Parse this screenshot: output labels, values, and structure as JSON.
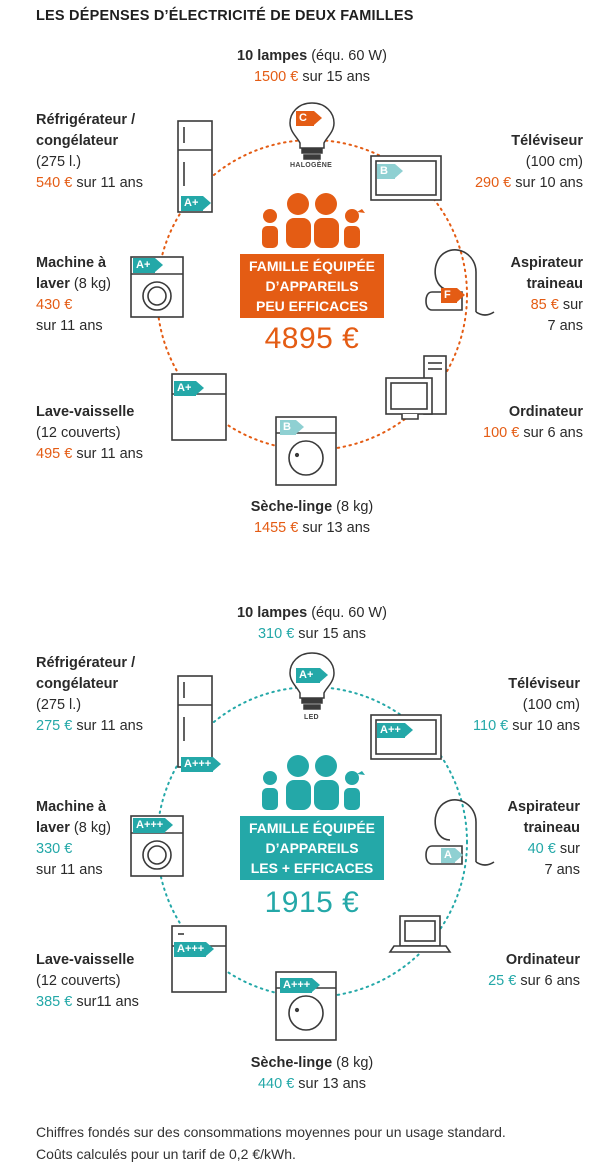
{
  "title": "LES DÉPENSES D’ÉLECTRICITÉ DE DEUX FAMILLES",
  "panels": [
    {
      "box_lines": [
        "FAMILLE ÉQUIPÉE",
        "D’APPAREILS",
        "PEU EFFICACES"
      ],
      "total": "4895 €",
      "bulb_caption": "HALOGÈNE",
      "items": {
        "lampes": {
          "name": "10 lampes",
          "detail": " (équ. 60 W)",
          "cost": "1500 €",
          "period": " sur 15 ans",
          "label": "C"
        },
        "frigo": {
          "name1": "Réfrigérateur /",
          "name2": "congélateur",
          "detail": "(275 l.)",
          "cost": "540 €",
          "period": " sur 11 ans",
          "label": "A+"
        },
        "tv": {
          "name": "Téléviseur",
          "detail": "(100 cm)",
          "cost": "290 €",
          "period": " sur 10 ans",
          "label": "B"
        },
        "machine": {
          "name1": "Machine à",
          "name2": "laver",
          "detail": " (8 kg)",
          "cost": "430 €",
          "period": "sur 11 ans",
          "label": "A+"
        },
        "aspi": {
          "name1": "Aspirateur",
          "name2": "traineau",
          "cost": "85 €",
          "period1": " sur",
          "period2": "7 ans",
          "label": "F"
        },
        "lave": {
          "name": "Lave-vaisselle",
          "detail": "(12 couverts)",
          "cost": "495 €",
          "period": " sur 11 ans",
          "label": "A+"
        },
        "ordi": {
          "name": "Ordinateur",
          "cost": "100 €",
          "period": " sur 6 ans"
        },
        "seche": {
          "name": "Sèche-linge",
          "detail": " (8 kg)",
          "cost": "1455 €",
          "period": " sur 13 ans",
          "label": "B"
        }
      }
    },
    {
      "box_lines": [
        "FAMILLE ÉQUIPÉE",
        "D’APPAREILS",
        "LES + EFFICACES"
      ],
      "total": "1915 €",
      "bulb_caption": "LED",
      "items": {
        "lampes": {
          "name": "10 lampes",
          "detail": " (équ. 60 W)",
          "cost": "310 €",
          "period": " sur 15 ans",
          "label": "A+"
        },
        "frigo": {
          "name1": "Réfrigérateur /",
          "name2": "congélateur",
          "detail": "(275 l.)",
          "cost": "275 €",
          "period": " sur 11 ans",
          "label": "A+++"
        },
        "tv": {
          "name": "Téléviseur",
          "detail": "(100 cm)",
          "cost": "110 €",
          "period": " sur 10 ans",
          "label": "A++"
        },
        "machine": {
          "name1": "Machine à",
          "name2": "laver",
          "detail": " (8 kg)",
          "cost": "330 €",
          "period": "sur 11 ans",
          "label": "A+++"
        },
        "aspi": {
          "name1": "Aspirateur",
          "name2": "traineau",
          "cost": "40 €",
          "period1": " sur",
          "period2": "7 ans",
          "label": "A"
        },
        "lave": {
          "name": "Lave-vaisselle",
          "detail": "(12 couverts)",
          "cost": "385 €",
          "period": " sur11 ans",
          "label": "A+++"
        },
        "ordi": {
          "name": "Ordinateur",
          "cost": "25 €",
          "period": " sur 6 ans"
        },
        "seche": {
          "name": "Sèche-linge",
          "detail": " (8 kg)",
          "cost": "440 €",
          "period": " sur 13 ans",
          "label": "A+++"
        }
      }
    }
  ],
  "footer": {
    "line1": "Chiffres fondés sur des consommations moyennes pour un usage standard.",
    "line2": "Coûts calculés pour un tarif de 0,2 €/kWh."
  },
  "colors": {
    "inefficient": "#e45c14",
    "efficient": "#24a8a8",
    "light_label": "#8fd0d2",
    "appliance_stroke": "#3a3a3a"
  },
  "icons": [
    "family-icon",
    "bulb-icon",
    "fridge-icon",
    "tv-icon",
    "washing-machine-icon",
    "vacuum-icon",
    "dishwasher-icon",
    "computer-icon",
    "dryer-icon"
  ]
}
